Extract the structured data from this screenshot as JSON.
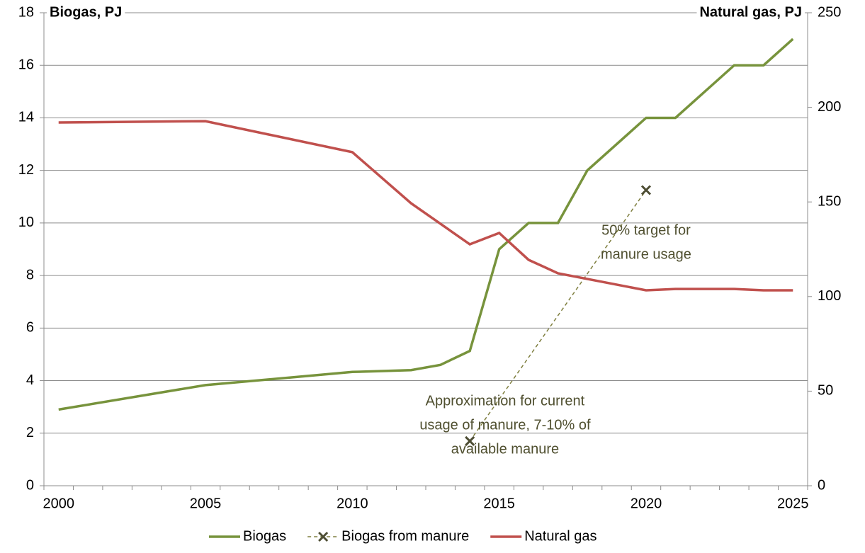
{
  "chart_data": {
    "type": "line",
    "y_label": "Biogas, PJ",
    "y2_label": "Natural gas, PJ",
    "xlim": [
      1999.5,
      2025.5
    ],
    "xticks": [
      2000,
      2005,
      2010,
      2015,
      2020,
      2025
    ],
    "ylim": [
      0,
      18
    ],
    "yticks": [
      0,
      2,
      4,
      6,
      8,
      10,
      12,
      14,
      16,
      18
    ],
    "y2lim": [
      0,
      250
    ],
    "y2ticks": [
      0,
      50,
      100,
      150,
      200,
      250
    ],
    "grid": true,
    "legend": "bottom",
    "series": [
      {
        "name": "Biogas",
        "color": "#77933c",
        "dashed": false,
        "markers": false,
        "x": [
          2000,
          2005,
          2010,
          2012,
          2013,
          2014,
          2015,
          2016,
          2017,
          2018,
          2020,
          2021,
          2023,
          2024,
          2025
        ],
        "values": [
          2.9,
          3.83,
          4.33,
          4.4,
          4.6,
          5.13,
          9.0,
          10.0,
          10.0,
          12.0,
          14.0,
          14.0,
          16.0,
          16.0,
          17.0
        ]
      },
      {
        "name": "Biogas from manure",
        "color": "#7f7f3f",
        "marker_color": "#4d4d33",
        "dashed": true,
        "markers": true,
        "x": [
          2014,
          2020
        ],
        "values": [
          1.7,
          11.25
        ]
      },
      {
        "name": "Natural gas",
        "color": "#c0504d",
        "dashed": false,
        "markers": false,
        "axis": "y2",
        "x": [
          2000,
          2005,
          2010,
          2012,
          2014,
          2015,
          2016,
          2017,
          2020,
          2021,
          2023,
          2024,
          2025
        ],
        "values": [
          192,
          192.7,
          176.3,
          149.3,
          127.6,
          133.6,
          119.4,
          112.3,
          103.3,
          104,
          104,
          103.3,
          103.3
        ]
      }
    ],
    "annotations": [
      {
        "lines": [
          "50% target for",
          "manure usage"
        ],
        "x": 2020,
        "y": 9.7
      },
      {
        "lines": [
          "Approximation for current",
          "usage of manure, 7-10% of",
          "available manure"
        ],
        "x": 2015.2,
        "y": 3.2
      }
    ]
  }
}
